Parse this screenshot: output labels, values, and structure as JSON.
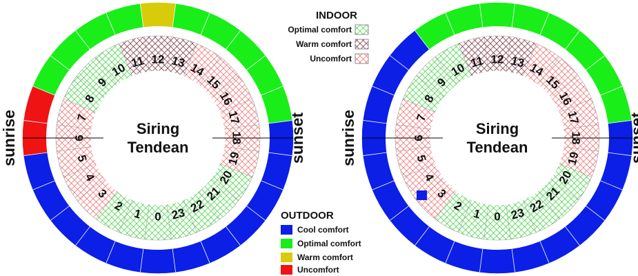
{
  "colors": {
    "cool": "#0b1fe6",
    "optimal": "#19ee19",
    "warm": "#d8cc0a",
    "uncomfort": "#f01313",
    "indoor_optimal": "#3fd43f",
    "indoor_warm": "#7a2a3a",
    "indoor_uncomfort": "#f06a6a"
  },
  "chart_data": [
    {
      "type": "radial-clock",
      "center_label_line1": "Siring",
      "center_label_line2": "Tendean",
      "sunrise_label": "sunrise",
      "sunset_label": "sunset",
      "hour_labels": [
        "0",
        "1",
        "2",
        "3",
        "4",
        "5",
        "6",
        "7",
        "8",
        "9",
        "10",
        "11",
        "12",
        "13",
        "14",
        "15",
        "16",
        "17",
        "18",
        "19",
        "20",
        "21",
        "22",
        "23"
      ],
      "outdoor": [
        "cool",
        "cool",
        "cool",
        "cool",
        "cool",
        "cool",
        "uncomfort",
        "uncomfort",
        "optimal",
        "optimal",
        "optimal",
        "optimal",
        "warm",
        "optimal",
        "optimal",
        "optimal",
        "optimal",
        "optimal",
        "cool",
        "cool",
        "cool",
        "cool",
        "cool",
        "cool"
      ],
      "indoor": [
        "optimal",
        "optimal",
        "optimal",
        "uncomfort",
        "uncomfort",
        "uncomfort",
        "uncomfort",
        "uncomfort",
        "optimal",
        "optimal",
        "optimal",
        "warm",
        "warm",
        "warm",
        "uncomfort",
        "uncomfort",
        "uncomfort",
        "uncomfort",
        "uncomfort",
        "uncomfort",
        "optimal",
        "optimal",
        "optimal",
        "optimal"
      ]
    },
    {
      "type": "radial-clock",
      "center_label_line1": "Siring",
      "center_label_line2": "Tendean",
      "sunrise_label": "sunrise",
      "sunset_label": "sunset",
      "hour_labels": [
        "0",
        "1",
        "2",
        "3",
        "4",
        "5",
        "6",
        "7",
        "8",
        "9",
        "10",
        "11",
        "12",
        "13",
        "14",
        "15",
        "16",
        "17",
        "18",
        "19",
        "20",
        "21",
        "22",
        "23"
      ],
      "outdoor": [
        "cool",
        "cool",
        "cool",
        "cool",
        "cool",
        "cool",
        "cool",
        "cool",
        "cool",
        "cool",
        "optimal",
        "optimal",
        "optimal",
        "optimal",
        "optimal",
        "optimal",
        "optimal",
        "optimal",
        "cool",
        "cool",
        "cool",
        "cool",
        "cool",
        "cool"
      ],
      "indoor": [
        "optimal",
        "optimal",
        "optimal",
        "uncomfort",
        "uncomfort",
        "uncomfort",
        "uncomfort",
        "uncomfort",
        "optimal",
        "optimal",
        "optimal",
        "warm",
        "warm",
        "warm",
        "uncomfort",
        "uncomfort",
        "uncomfort",
        "uncomfort",
        "uncomfort",
        "uncomfort",
        "optimal",
        "optimal",
        "optimal",
        "optimal"
      ]
    }
  ],
  "legend_indoor": {
    "title": "INDOOR",
    "items": [
      {
        "key": "optimal",
        "label": "Optimal comfort"
      },
      {
        "key": "warm",
        "label": "Warm comfort"
      },
      {
        "key": "uncomfort",
        "label": "Uncomfort"
      }
    ]
  },
  "legend_outdoor": {
    "title": "OUTDOOR",
    "items": [
      {
        "key": "cool",
        "label": "Cool comfort"
      },
      {
        "key": "optimal",
        "label": "Optimal comfort"
      },
      {
        "key": "warm",
        "label": "Warm comfort"
      },
      {
        "key": "uncomfort",
        "label": "Uncomfort"
      }
    ]
  }
}
